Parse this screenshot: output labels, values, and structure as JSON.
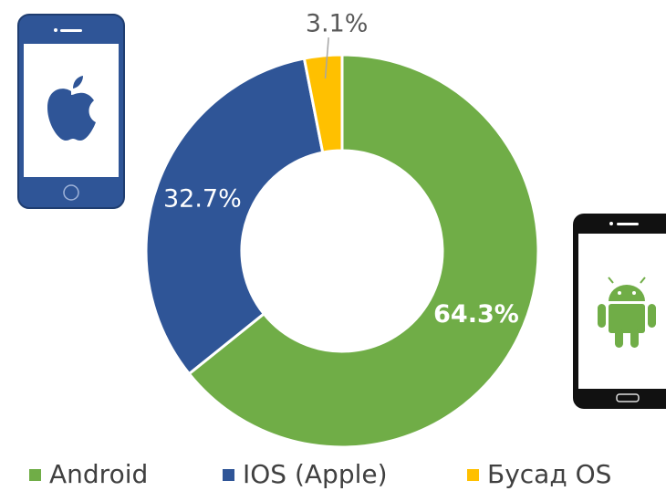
{
  "chart_data": {
    "type": "donut",
    "categories": [
      "Android",
      "IOS (Apple)",
      "Бусад OS"
    ],
    "values": [
      64.3,
      32.7,
      3.1
    ],
    "value_labels": [
      "64.3%",
      "32.7%",
      "3.1%"
    ],
    "colors": [
      "#70ad47",
      "#2f5597",
      "#ffc000"
    ],
    "legend": "bottom"
  }
}
